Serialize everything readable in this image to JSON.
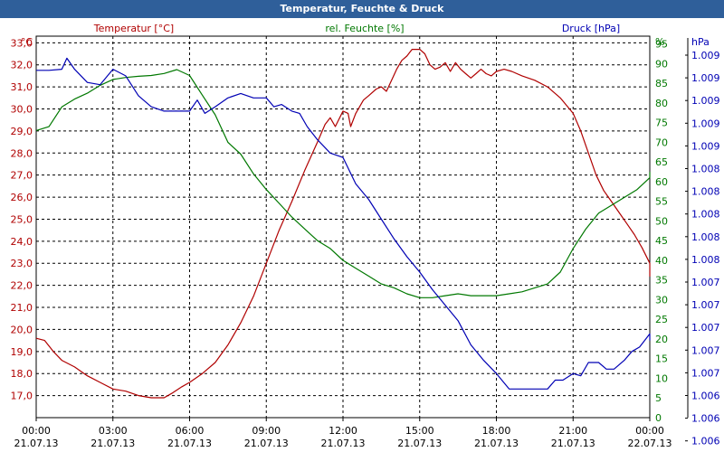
{
  "title": "Temperatur, Feuchte & Druck",
  "colors": {
    "temperature": "#b00000",
    "humidity": "#007800",
    "pressure": "#0000b4",
    "title_bar": "#2f5f9a",
    "grid": "#000000"
  },
  "chart_data": {
    "type": "line",
    "title": "Temperatur, Feuchte & Druck",
    "grid": true,
    "x_ticks": [
      {
        "time": "00:00",
        "date": "21.07.13"
      },
      {
        "time": "03:00",
        "date": "21.07.13"
      },
      {
        "time": "06:00",
        "date": "21.07.13"
      },
      {
        "time": "09:00",
        "date": "21.07.13"
      },
      {
        "time": "12:00",
        "date": "21.07.13"
      },
      {
        "time": "15:00",
        "date": "21.07.13"
      },
      {
        "time": "18:00",
        "date": "21.07.13"
      },
      {
        "time": "21:00",
        "date": "21.07.13"
      },
      {
        "time": "00:00",
        "date": "22.07.13"
      }
    ],
    "x_hours": [
      0,
      24
    ],
    "axes": {
      "temperature": {
        "label": "Temperatur [°C]",
        "unit": "°C",
        "range": [
          16.0,
          33.3
        ],
        "ticks": [
          "33,0",
          "32,0",
          "31,0",
          "30,0",
          "29,0",
          "28,0",
          "27,0",
          "26,0",
          "25,0",
          "24,0",
          "23,0",
          "22,0",
          "21,0",
          "20,0",
          "19,0",
          "18,0",
          "17,0"
        ]
      },
      "humidity": {
        "label": "rel. Feuchte [%]",
        "unit": "%",
        "range": [
          0,
          97
        ],
        "ticks": [
          "95",
          "90",
          "85",
          "80",
          "75",
          "70",
          "65",
          "60",
          "55",
          "50",
          "45",
          "40",
          "35",
          "30",
          "25",
          "20",
          "15",
          "10",
          "5",
          "0"
        ]
      },
      "pressure": {
        "label": "Druck [hPa]",
        "unit": "hPa",
        "ticks": [
          "1.009",
          "1.009",
          "1.009",
          "1.009",
          "1.009",
          "1.008",
          "1.008",
          "1.008",
          "1.008",
          "1.008",
          "1.007",
          "1.007",
          "1.007",
          "1.007",
          "1.007",
          "1.006",
          "1.006",
          "1.006"
        ]
      }
    },
    "series": [
      {
        "name": "Temperatur [°C]",
        "axis": "temperature",
        "points": [
          [
            0,
            19.6
          ],
          [
            0.33,
            19.5
          ],
          [
            0.67,
            19.0
          ],
          [
            1.0,
            18.6
          ],
          [
            1.5,
            18.3
          ],
          [
            2.0,
            17.9
          ],
          [
            2.5,
            17.6
          ],
          [
            3.0,
            17.3
          ],
          [
            3.5,
            17.2
          ],
          [
            4.0,
            17.0
          ],
          [
            4.5,
            16.9
          ],
          [
            5.0,
            16.9
          ],
          [
            5.3,
            17.1
          ],
          [
            5.7,
            17.4
          ],
          [
            6.0,
            17.6
          ],
          [
            6.5,
            18.0
          ],
          [
            7.0,
            18.5
          ],
          [
            7.5,
            19.3
          ],
          [
            8.0,
            20.3
          ],
          [
            8.5,
            21.5
          ],
          [
            9.0,
            23.0
          ],
          [
            9.5,
            24.5
          ],
          [
            10.0,
            25.8
          ],
          [
            10.5,
            27.2
          ],
          [
            11.0,
            28.5
          ],
          [
            11.3,
            29.3
          ],
          [
            11.5,
            29.6
          ],
          [
            11.7,
            29.2
          ],
          [
            12.0,
            29.9
          ],
          [
            12.2,
            29.8
          ],
          [
            12.3,
            29.2
          ],
          [
            12.5,
            29.8
          ],
          [
            12.8,
            30.4
          ],
          [
            13.0,
            30.6
          ],
          [
            13.3,
            30.9
          ],
          [
            13.5,
            31.0
          ],
          [
            13.7,
            30.8
          ],
          [
            13.9,
            31.3
          ],
          [
            14.1,
            31.8
          ],
          [
            14.3,
            32.2
          ],
          [
            14.5,
            32.4
          ],
          [
            14.7,
            32.7
          ],
          [
            15.0,
            32.7
          ],
          [
            15.2,
            32.5
          ],
          [
            15.4,
            32.0
          ],
          [
            15.6,
            31.8
          ],
          [
            15.8,
            31.9
          ],
          [
            16.0,
            32.1
          ],
          [
            16.2,
            31.7
          ],
          [
            16.4,
            32.1
          ],
          [
            16.6,
            31.8
          ],
          [
            16.8,
            31.6
          ],
          [
            17.0,
            31.4
          ],
          [
            17.2,
            31.6
          ],
          [
            17.4,
            31.8
          ],
          [
            17.6,
            31.6
          ],
          [
            17.8,
            31.5
          ],
          [
            18.0,
            31.7
          ],
          [
            18.3,
            31.8
          ],
          [
            18.6,
            31.7
          ],
          [
            19.0,
            31.5
          ],
          [
            19.5,
            31.3
          ],
          [
            20.0,
            31.0
          ],
          [
            20.5,
            30.5
          ],
          [
            21.0,
            29.8
          ],
          [
            21.3,
            29.0
          ],
          [
            21.6,
            28.0
          ],
          [
            21.9,
            27.0
          ],
          [
            22.2,
            26.3
          ],
          [
            22.5,
            25.8
          ],
          [
            22.8,
            25.3
          ],
          [
            23.1,
            24.8
          ],
          [
            23.4,
            24.3
          ],
          [
            23.7,
            23.7
          ],
          [
            24.0,
            23.0
          ],
          [
            24.15,
            22.4
          ]
        ]
      },
      {
        "name": "rel. Feuchte [%]",
        "axis": "humidity",
        "points": [
          [
            0,
            73.0
          ],
          [
            0.5,
            74.0
          ],
          [
            1.0,
            79.0
          ],
          [
            1.5,
            81.0
          ],
          [
            2.0,
            82.5
          ],
          [
            2.5,
            84.5
          ],
          [
            3.0,
            86.0
          ],
          [
            3.5,
            86.5
          ],
          [
            4.0,
            86.8
          ],
          [
            4.5,
            87.0
          ],
          [
            5.0,
            87.5
          ],
          [
            5.5,
            88.5
          ],
          [
            6.0,
            87.0
          ],
          [
            6.5,
            82.0
          ],
          [
            7.0,
            77.0
          ],
          [
            7.5,
            70.0
          ],
          [
            8.0,
            67.0
          ],
          [
            8.5,
            62.0
          ],
          [
            9.0,
            58.0
          ],
          [
            9.5,
            54.5
          ],
          [
            10.0,
            51.0
          ],
          [
            10.5,
            48.0
          ],
          [
            11.0,
            45.0
          ],
          [
            11.5,
            43.0
          ],
          [
            12.0,
            40.0
          ],
          [
            12.5,
            38.0
          ],
          [
            13.0,
            36.0
          ],
          [
            13.5,
            34.0
          ],
          [
            14.0,
            33.0
          ],
          [
            14.5,
            31.5
          ],
          [
            15.0,
            30.5
          ],
          [
            15.5,
            30.5
          ],
          [
            16.0,
            31.0
          ],
          [
            16.5,
            31.5
          ],
          [
            17.0,
            31.0
          ],
          [
            17.5,
            31.0
          ],
          [
            18.0,
            31.0
          ],
          [
            18.5,
            31.5
          ],
          [
            19.0,
            32.0
          ],
          [
            19.5,
            33.0
          ],
          [
            20.0,
            34.0
          ],
          [
            20.5,
            37.0
          ],
          [
            21.0,
            43.0
          ],
          [
            21.5,
            48.0
          ],
          [
            22.0,
            52.0
          ],
          [
            22.5,
            54.0
          ],
          [
            23.0,
            56.0
          ],
          [
            23.5,
            58.0
          ],
          [
            24.0,
            61.0
          ],
          [
            24.2,
            62.5
          ]
        ]
      },
      {
        "name": "Druck [hPa]",
        "axis": "pressure",
        "points": [
          [
            0,
            31.75
          ],
          [
            0.5,
            31.75
          ],
          [
            1.0,
            31.8
          ],
          [
            1.2,
            32.3
          ],
          [
            1.5,
            31.8
          ],
          [
            2.0,
            31.2
          ],
          [
            2.5,
            31.1
          ],
          [
            3.0,
            31.8
          ],
          [
            3.5,
            31.5
          ],
          [
            4.0,
            30.6
          ],
          [
            4.5,
            30.1
          ],
          [
            5.0,
            29.9
          ],
          [
            5.5,
            29.9
          ],
          [
            6.0,
            29.9
          ],
          [
            6.3,
            30.4
          ],
          [
            6.6,
            29.8
          ],
          [
            7.0,
            30.1
          ],
          [
            7.5,
            30.5
          ],
          [
            8.0,
            30.7
          ],
          [
            8.5,
            30.5
          ],
          [
            9.0,
            30.5
          ],
          [
            9.3,
            30.1
          ],
          [
            9.6,
            30.2
          ],
          [
            10.0,
            29.9
          ],
          [
            10.3,
            29.8
          ],
          [
            10.6,
            29.2
          ],
          [
            11.0,
            28.6
          ],
          [
            11.5,
            28.0
          ],
          [
            12.0,
            27.8
          ],
          [
            12.5,
            26.6
          ],
          [
            13.0,
            25.9
          ],
          [
            13.5,
            25.0
          ],
          [
            14.0,
            24.1
          ],
          [
            14.5,
            23.3
          ],
          [
            15.0,
            22.6
          ],
          [
            15.5,
            21.8
          ],
          [
            16.0,
            21.1
          ],
          [
            16.5,
            20.4
          ],
          [
            17.0,
            19.3
          ],
          [
            17.5,
            18.6
          ],
          [
            18.0,
            18.0
          ],
          [
            18.5,
            17.3
          ],
          [
            19.0,
            17.3
          ],
          [
            19.5,
            17.3
          ],
          [
            20.0,
            17.3
          ],
          [
            20.3,
            17.7
          ],
          [
            20.6,
            17.7
          ],
          [
            21.0,
            18.0
          ],
          [
            21.3,
            17.9
          ],
          [
            21.6,
            18.5
          ],
          [
            22.0,
            18.5
          ],
          [
            22.3,
            18.2
          ],
          [
            22.6,
            18.2
          ],
          [
            23.0,
            18.6
          ],
          [
            23.3,
            19.0
          ],
          [
            23.6,
            19.2
          ],
          [
            24.0,
            19.8
          ],
          [
            24.2,
            19.5
          ]
        ]
      }
    ]
  }
}
